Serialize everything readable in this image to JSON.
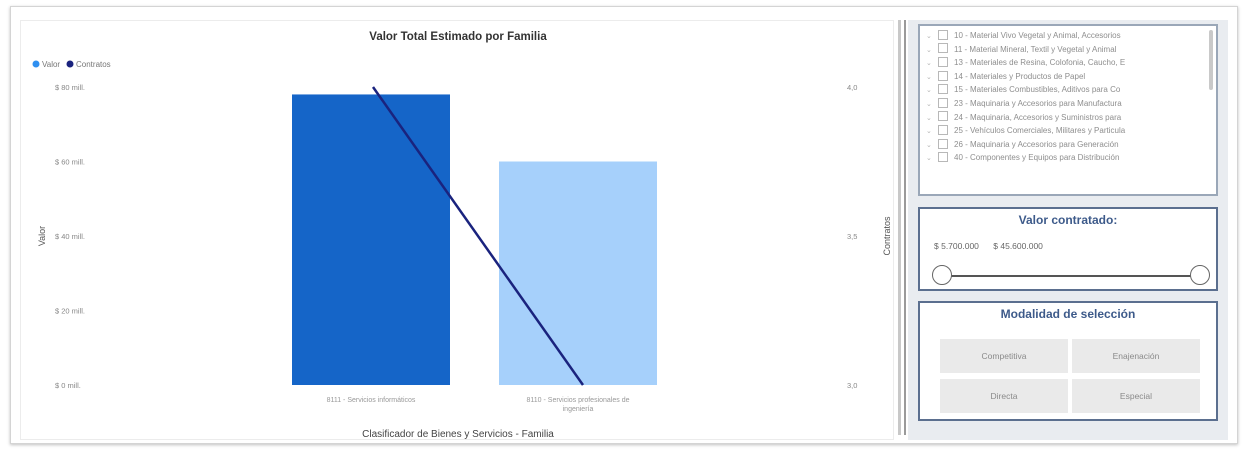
{
  "chart": {
    "title": "Valor Total Estimado por Familia",
    "legend": [
      {
        "label": "Valor",
        "color": "#2f8ff0"
      },
      {
        "label": "Contratos",
        "color": "#1a237e"
      }
    ],
    "y_left_label": "Valor",
    "y_right_label": "Contratos",
    "x_label": "Clasificador de Bienes y Servicios - Familia",
    "y_left_ticks": [
      "$ 80 mill.",
      "$ 60 mill.",
      "$ 40 mill.",
      "$ 20 mill.",
      "$ 0 mill."
    ],
    "y_right_ticks": [
      "4,0",
      "3,5",
      "3,0"
    ]
  },
  "chart_data": {
    "type": "bar",
    "title": "Valor Total Estimado por Familia",
    "categories": [
      "8111 - Servicios informáticos",
      "8110 - Servicios profesionales de ingeniería"
    ],
    "series": [
      {
        "name": "Valor",
        "type": "bar",
        "values": [
          78,
          60
        ],
        "unit": "mill."
      },
      {
        "name": "Contratos",
        "type": "line",
        "values": [
          4.0,
          3.0
        ]
      }
    ],
    "bar_colors": [
      "#1565c8",
      "#a6d0fb"
    ],
    "line_color": "#1a237e",
    "ylim_left": [
      0,
      80
    ],
    "ylim_right": [
      3.0,
      4.0
    ],
    "xlabel": "Clasificador de Bienes y Servicios - Familia",
    "ylabel": "Valor",
    "ylabel_right": "Contratos",
    "legend_position": "top-left"
  },
  "slicer": {
    "items": [
      "10 - Material Vivo Vegetal y Animal, Accesorios",
      "11 - Material Mineral, Textil y Vegetal y Animal",
      "13 - Materiales de Resina, Colofonia, Caucho, E",
      "14 - Materiales y Productos de Papel",
      "15 - Materiales Combustibles, Aditivos para Co",
      "23 - Maquinaria y Accesorios para Manufactura",
      "24 - Maquinaria, Accesorios y Suministros para",
      "25 - Vehículos Comerciales, Militares y Particula",
      "26 - Maquinaria y Accesorios para Generación",
      "40 - Componentes y Equipos para Distribución"
    ]
  },
  "valor_contratado": {
    "title": "Valor contratado:",
    "min_value": "$ 5.700.000",
    "max_value": "$ 45.600.000"
  },
  "modalidad": {
    "title": "Modalidad de selección",
    "buttons": [
      "Competitiva",
      "Enajenación",
      "Directa",
      "Especial"
    ]
  }
}
